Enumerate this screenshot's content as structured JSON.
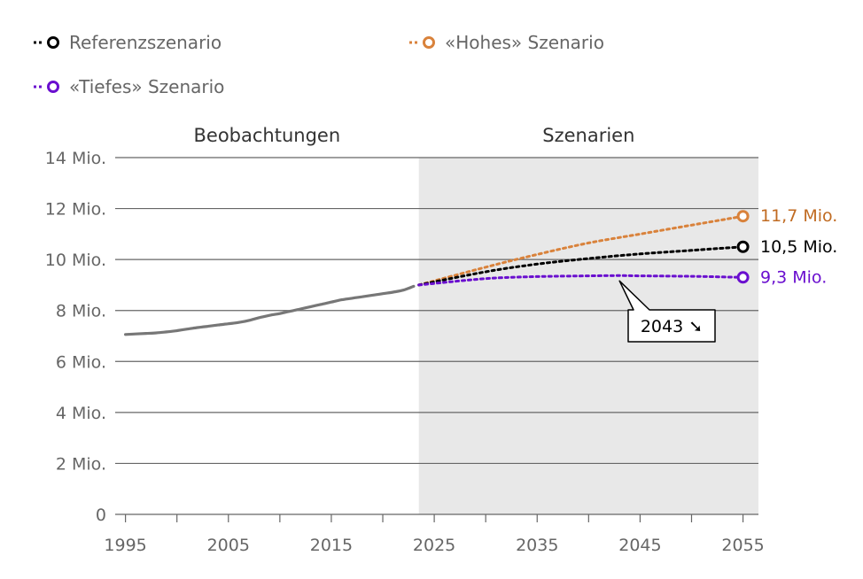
{
  "chart_data": {
    "type": "line",
    "legend": [
      {
        "label": "Referenzszenario",
        "color": "#000000"
      },
      {
        "label": "«Hohes» Szenario",
        "color": "#d9823b"
      },
      {
        "label": "«Tiefes» Szenario",
        "color": "#6a0fcf"
      }
    ],
    "legend_position": "top-left",
    "regions": [
      {
        "label": "Beobachtungen",
        "from": 1994,
        "to": 2023.5
      },
      {
        "label": "Szenarien",
        "from": 2023.5,
        "to": 2056.5,
        "shaded": true,
        "color": "#e8e8e8"
      }
    ],
    "x_ticks": [
      1995,
      2005,
      2015,
      2025,
      2035,
      2045,
      2055
    ],
    "xlim": [
      1994,
      2056.5
    ],
    "y_ticks": [
      {
        "value": 0,
        "label": "0"
      },
      {
        "value": 2,
        "label": "2 Mio."
      },
      {
        "value": 4,
        "label": "4 Mio."
      },
      {
        "value": 6,
        "label": "6 Mio."
      },
      {
        "value": 8,
        "label": "8 Mio."
      },
      {
        "value": 10,
        "label": "10 Mio."
      },
      {
        "value": 12,
        "label": "12 Mio."
      },
      {
        "value": 14,
        "label": "14 Mio."
      }
    ],
    "ylim": [
      0,
      14
    ],
    "grid": true,
    "observed": {
      "color": "#777777",
      "x": [
        1995,
        1996,
        1997,
        1998,
        1999,
        2000,
        2001,
        2002,
        2003,
        2004,
        2005,
        2006,
        2007,
        2008,
        2009,
        2010,
        2011,
        2012,
        2013,
        2014,
        2015,
        2016,
        2017,
        2018,
        2019,
        2020,
        2021,
        2022,
        2023
      ],
      "y": [
        7.06,
        7.08,
        7.1,
        7.12,
        7.16,
        7.21,
        7.27,
        7.33,
        7.38,
        7.43,
        7.48,
        7.53,
        7.61,
        7.72,
        7.81,
        7.88,
        7.97,
        8.06,
        8.15,
        8.24,
        8.33,
        8.42,
        8.48,
        8.54,
        8.6,
        8.66,
        8.72,
        8.8,
        8.95
      ]
    },
    "series": [
      {
        "name": "Referenzszenario",
        "color": "#000000",
        "x": [
          2023.5,
          2030,
          2035,
          2040,
          2045,
          2050,
          2055
        ],
        "y": [
          9.0,
          9.52,
          9.82,
          10.04,
          10.22,
          10.36,
          10.5
        ],
        "end_label": "10,5 Mio."
      },
      {
        "name": "«Hohes» Szenario",
        "color": "#d9823b",
        "x": [
          2023.5,
          2030,
          2035,
          2040,
          2045,
          2050,
          2055
        ],
        "y": [
          9.0,
          9.7,
          10.2,
          10.65,
          11.0,
          11.35,
          11.7
        ],
        "end_label": "11,7 Mio."
      },
      {
        "name": "«Tiefes» Szenario",
        "color": "#6a0fcf",
        "x": [
          2023.5,
          2030,
          2035,
          2040,
          2043,
          2045,
          2050,
          2055
        ],
        "y": [
          9.0,
          9.25,
          9.33,
          9.36,
          9.37,
          9.36,
          9.34,
          9.3
        ],
        "end_label": "9,3 Mio."
      }
    ],
    "annotation": {
      "text": "2043 ➘",
      "series": "«Tiefes» Szenario",
      "x": 2043,
      "y": 9.37
    }
  }
}
